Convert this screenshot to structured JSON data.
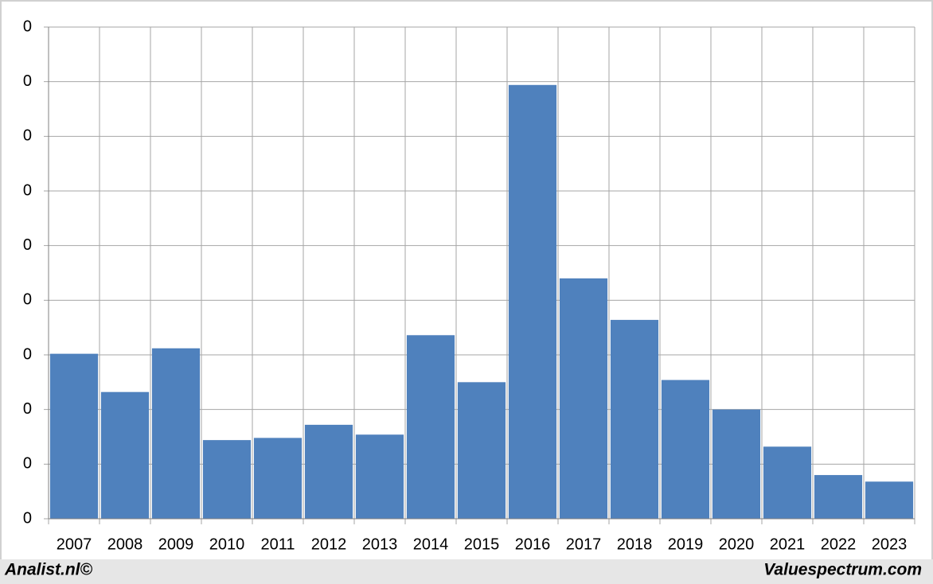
{
  "chart_data": {
    "type": "bar",
    "categories": [
      "2007",
      "2008",
      "2009",
      "2010",
      "2011",
      "2012",
      "2013",
      "2014",
      "2015",
      "2016",
      "2017",
      "2018",
      "2019",
      "2020",
      "2021",
      "2022",
      "2023"
    ],
    "values": [
      0.151,
      0.116,
      0.156,
      0.072,
      0.074,
      0.086,
      0.077,
      0.168,
      0.125,
      0.397,
      0.22,
      0.182,
      0.127,
      0.1,
      0.066,
      0.04,
      0.034
    ],
    "color": "#4f81bd",
    "ylim": [
      0,
      0.45
    ],
    "yticks": [
      {
        "value": 0,
        "label": "0"
      },
      {
        "value": 0.05,
        "label": "0"
      },
      {
        "value": 0.1,
        "label": "0"
      },
      {
        "value": 0.15,
        "label": "0"
      },
      {
        "value": 0.2,
        "label": "0"
      },
      {
        "value": 0.25,
        "label": "0"
      },
      {
        "value": 0.3,
        "label": "0"
      },
      {
        "value": 0.35,
        "label": "0"
      },
      {
        "value": 0.4,
        "label": "0"
      },
      {
        "value": 0.45,
        "label": "0"
      }
    ],
    "grid": true,
    "credits": [
      "Analist.nl©",
      "Valuespectrum.com"
    ]
  }
}
